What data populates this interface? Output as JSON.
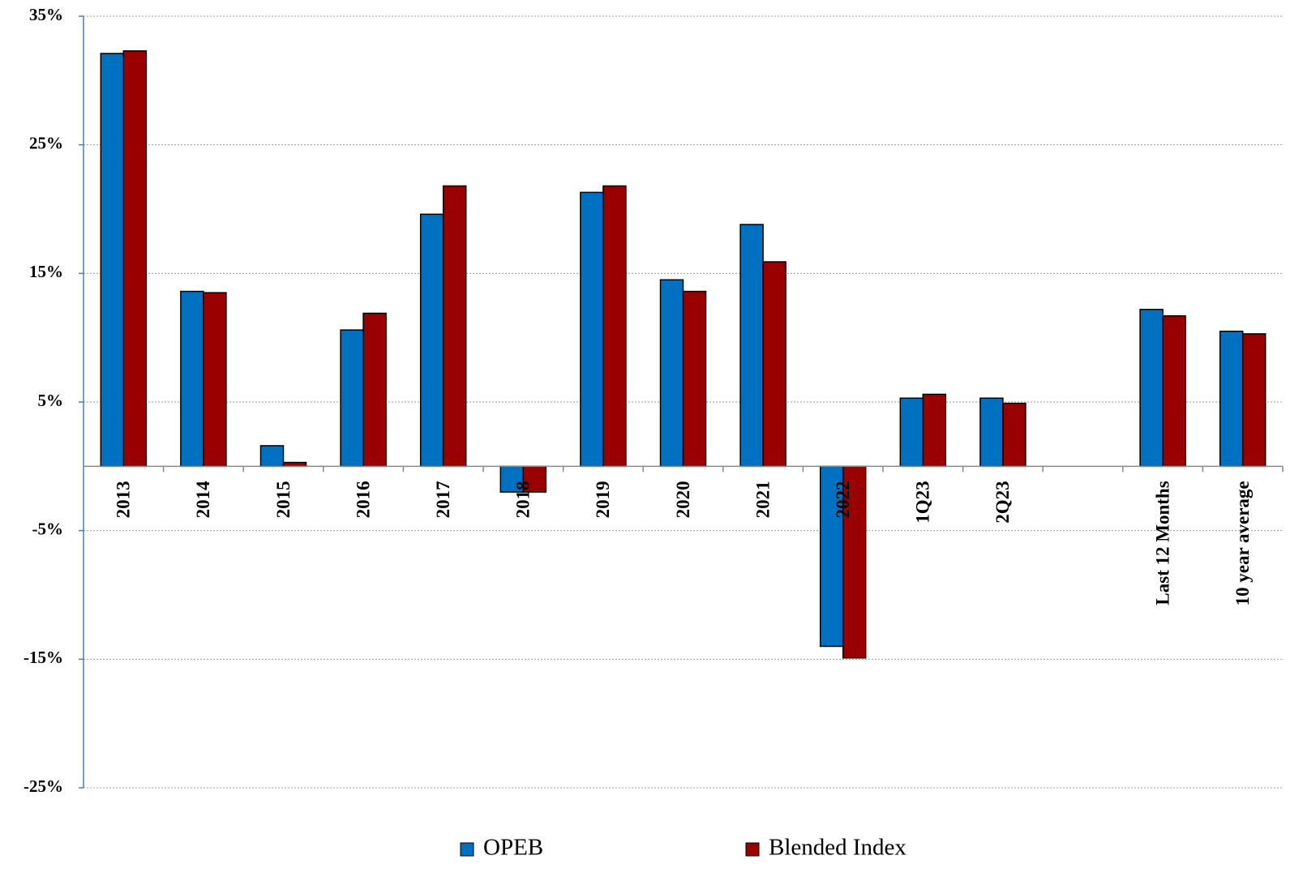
{
  "chart_data": {
    "type": "bar",
    "categories": [
      "2013",
      "2014",
      "2015",
      "2016",
      "2017",
      "2018",
      "2019",
      "2020",
      "2021",
      "2022",
      "1Q23",
      "2Q23",
      null,
      "Last 12 Months",
      "10 year average"
    ],
    "series": [
      {
        "name": "OPEB",
        "color": "#0070c0",
        "values": [
          32.1,
          13.6,
          1.6,
          10.6,
          19.6,
          -2.0,
          21.3,
          14.5,
          18.8,
          -14.0,
          5.3,
          5.3,
          null,
          12.2,
          10.5
        ]
      },
      {
        "name": "Blended Index",
        "color": "#990000",
        "values": [
          32.3,
          13.5,
          0.3,
          11.9,
          21.8,
          -2.0,
          21.8,
          13.6,
          15.9,
          -14.9,
          5.6,
          4.9,
          null,
          11.7,
          10.3
        ]
      }
    ],
    "ylim": [
      -25,
      35
    ],
    "yticks": [
      {
        "value": 35,
        "label": "35%"
      },
      {
        "value": 25,
        "label": "25%"
      },
      {
        "value": 15,
        "label": "15%"
      },
      {
        "value": 5,
        "label": "5%"
      },
      {
        "value": -5,
        "label": "-5%"
      },
      {
        "value": -15,
        "label": "-15%"
      },
      {
        "value": -25,
        "label": "-25%"
      }
    ],
    "grid": true
  }
}
